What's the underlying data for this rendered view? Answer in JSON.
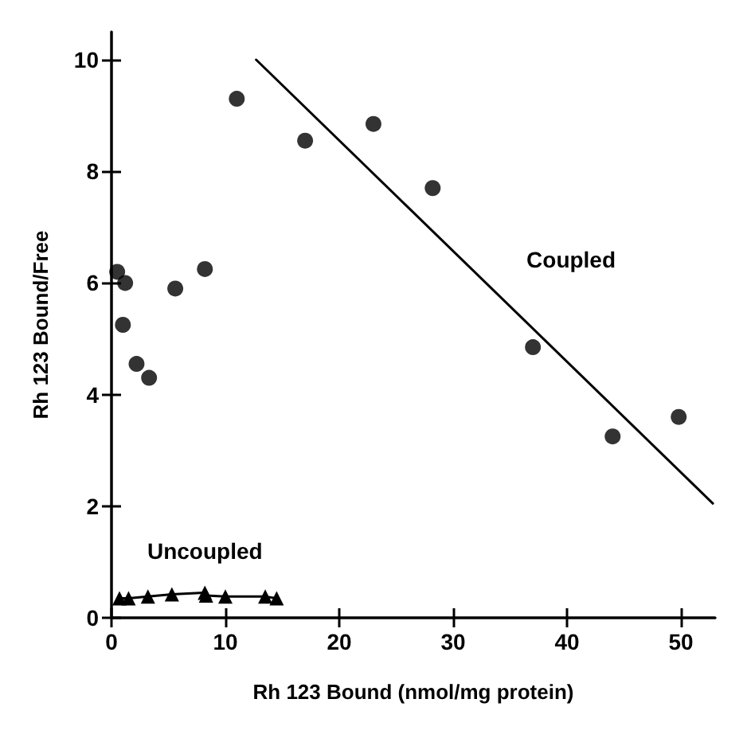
{
  "chart_data": {
    "type": "scatter",
    "xlabel": "Rh 123 Bound (nmol/mg protein)",
    "ylabel": "Rh 123 Bound/Free",
    "xlim": [
      0,
      53
    ],
    "ylim": [
      0,
      10.5
    ],
    "xticks": [
      0,
      10,
      20,
      30,
      40,
      50
    ],
    "yticks": [
      0,
      2,
      4,
      6,
      8,
      10
    ],
    "grid": false,
    "series": [
      {
        "marker": "circle",
        "color": "#000000",
        "x": [
          0.5,
          1,
          1.2,
          2.2,
          3.3,
          5.6,
          8.2,
          11,
          17,
          23,
          28.2,
          37,
          44,
          49.8
        ],
        "values": [
          6.2,
          5.25,
          6.0,
          4.55,
          4.3,
          5.9,
          6.25,
          9.3,
          8.55,
          8.85,
          7.7,
          4.85,
          3.25,
          3.6
        ]
      },
      {
        "type": "line",
        "name": "Coupled",
        "marker": "none",
        "line_style": "solid",
        "color": "#000000",
        "x": [
          12.7,
          52.8
        ],
        "values": [
          10.0,
          2.05
        ]
      },
      {
        "type": "line",
        "name": "Uncoupled",
        "marker": "triangle",
        "line_style": "solid",
        "color": "#000000",
        "x": [
          0.7,
          1.5,
          3.2,
          5.3,
          8.2,
          8.3,
          10,
          13.5,
          14.5
        ],
        "values": [
          0.35,
          0.35,
          0.38,
          0.42,
          0.45,
          0.4,
          0.38,
          0.38,
          0.35
        ]
      }
    ]
  }
}
